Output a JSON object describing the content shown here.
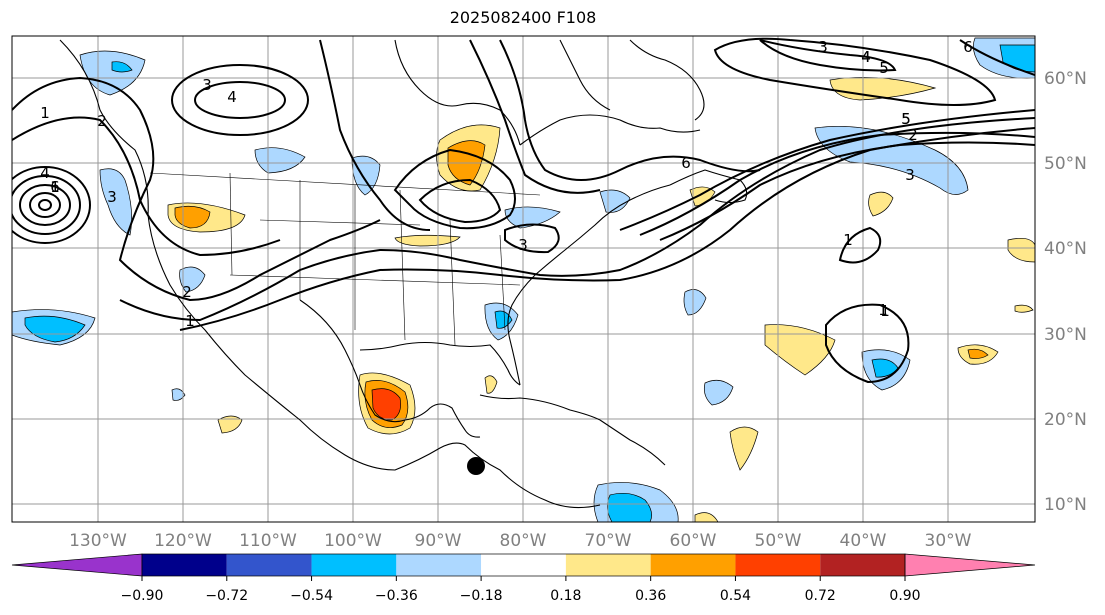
{
  "title": "2025082400 F108",
  "map": {
    "lon_ticks": [
      "130°W",
      "120°W",
      "110°W",
      "100°W",
      "90°W",
      "80°W",
      "70°W",
      "60°W",
      "50°W",
      "40°W",
      "30°W"
    ],
    "lat_ticks": [
      "60°N",
      "50°N",
      "40°N",
      "30°N",
      "20°N",
      "10°N"
    ],
    "contour_labels": [
      "1",
      "2",
      "3",
      "4",
      "4",
      "6",
      "3",
      "2",
      "1",
      "3",
      "4",
      "3",
      "1",
      "3",
      "4",
      "5",
      "2",
      "5",
      "6",
      "6",
      "1",
      "1",
      "5",
      "1"
    ]
  },
  "colorbar": {
    "labels": [
      "−0.90",
      "−0.72",
      "−0.54",
      "−0.36",
      "−0.18",
      "0.18",
      "0.36",
      "0.54",
      "0.72",
      "0.90"
    ],
    "colors": [
      "#9933cc",
      "#00008b",
      "#3355cc",
      "#00bfff",
      "#add8ff",
      "#ffffff",
      "#ffe88a",
      "#ffa000",
      "#ff4000",
      "#b22222",
      "#ff80b0"
    ]
  },
  "colors": {
    "pos_light": "#ffe88a",
    "pos_mid": "#ffa000",
    "pos_strong": "#ff4000",
    "neg_light": "#add8ff",
    "neg_mid": "#00bfff",
    "grid": "#999999"
  }
}
